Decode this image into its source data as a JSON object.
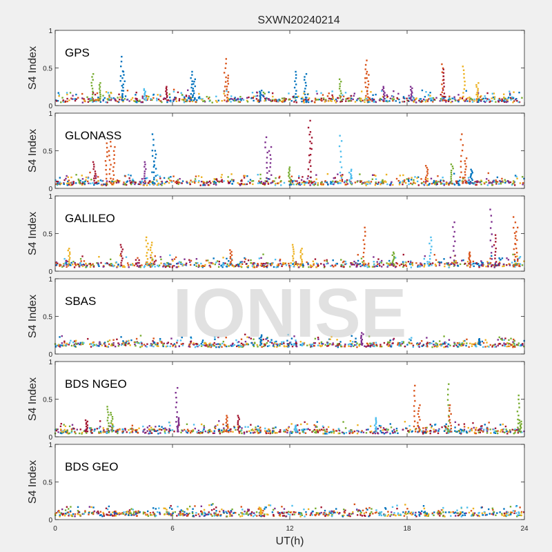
{
  "figure": {
    "title": "SXWN20240214",
    "xlabel": "UT(h)",
    "watermark": "IONISE",
    "background": "#f0f0f0",
    "axes_background": "#ffffff"
  },
  "series_colors": [
    "#0072bd",
    "#d95319",
    "#edb120",
    "#7e2f8e",
    "#77ac30",
    "#4dbeee",
    "#a2142f"
  ],
  "chart_data": [
    {
      "type": "scatter",
      "panel_label": "GPS",
      "ylabel": "S4 Index",
      "xlim": [
        0,
        24
      ],
      "ylim": [
        0,
        1
      ],
      "xticks": [
        0,
        6,
        12,
        18,
        24
      ],
      "yticks": [
        0,
        0.5,
        1
      ],
      "show_xticklabels": false,
      "baseline": 0.07,
      "spikes": [
        {
          "x": 1.9,
          "y": 0.42,
          "series": 4
        },
        {
          "x": 2.3,
          "y": 0.3,
          "series": 4
        },
        {
          "x": 3.4,
          "y": 0.65,
          "series": 0
        },
        {
          "x": 3.5,
          "y": 0.45,
          "series": 0
        },
        {
          "x": 4.6,
          "y": 0.22,
          "series": 5
        },
        {
          "x": 5.7,
          "y": 0.25,
          "series": 6
        },
        {
          "x": 7.0,
          "y": 0.45,
          "series": 0
        },
        {
          "x": 7.1,
          "y": 0.35,
          "series": 0
        },
        {
          "x": 8.7,
          "y": 0.62,
          "series": 1
        },
        {
          "x": 8.8,
          "y": 0.4,
          "series": 1
        },
        {
          "x": 10.5,
          "y": 0.2,
          "series": 0
        },
        {
          "x": 12.3,
          "y": 0.45,
          "series": 0
        },
        {
          "x": 12.8,
          "y": 0.42,
          "series": 0
        },
        {
          "x": 14.6,
          "y": 0.35,
          "series": 4
        },
        {
          "x": 15.9,
          "y": 0.6,
          "series": 1
        },
        {
          "x": 16.0,
          "y": 0.45,
          "series": 1
        },
        {
          "x": 16.8,
          "y": 0.25,
          "series": 3
        },
        {
          "x": 18.2,
          "y": 0.25,
          "series": 3
        },
        {
          "x": 19.8,
          "y": 0.55,
          "series": 1
        },
        {
          "x": 19.9,
          "y": 0.48,
          "series": 6
        },
        {
          "x": 20.9,
          "y": 0.52,
          "series": 2
        },
        {
          "x": 21.6,
          "y": 0.3,
          "series": 2
        }
      ]
    },
    {
      "type": "scatter",
      "panel_label": "GLONASS",
      "ylabel": "S4 Index",
      "xlim": [
        0,
        24
      ],
      "ylim": [
        0,
        1
      ],
      "xticks": [
        0,
        6,
        12,
        18,
        24
      ],
      "yticks": [
        0,
        0.5,
        1
      ],
      "show_xticklabels": false,
      "baseline": 0.07,
      "spikes": [
        {
          "x": 2.0,
          "y": 0.35,
          "series": 6
        },
        {
          "x": 2.6,
          "y": 0.6,
          "series": 1
        },
        {
          "x": 2.8,
          "y": 0.62,
          "series": 1
        },
        {
          "x": 3.0,
          "y": 0.55,
          "series": 1
        },
        {
          "x": 4.6,
          "y": 0.35,
          "series": 3
        },
        {
          "x": 5.0,
          "y": 0.72,
          "series": 0
        },
        {
          "x": 5.1,
          "y": 0.5,
          "series": 0
        },
        {
          "x": 10.8,
          "y": 0.68,
          "series": 3
        },
        {
          "x": 11.0,
          "y": 0.55,
          "series": 3
        },
        {
          "x": 12.0,
          "y": 0.28,
          "series": 4
        },
        {
          "x": 13.0,
          "y": 0.9,
          "series": 6
        },
        {
          "x": 13.1,
          "y": 0.75,
          "series": 6
        },
        {
          "x": 14.6,
          "y": 0.7,
          "series": 5
        },
        {
          "x": 15.1,
          "y": 0.25,
          "series": 5
        },
        {
          "x": 19.0,
          "y": 0.3,
          "series": 1
        },
        {
          "x": 20.3,
          "y": 0.32,
          "series": 4
        },
        {
          "x": 20.8,
          "y": 0.72,
          "series": 1
        },
        {
          "x": 21.0,
          "y": 0.4,
          "series": 1
        },
        {
          "x": 21.3,
          "y": 0.25,
          "series": 0
        }
      ]
    },
    {
      "type": "scatter",
      "panel_label": "GALILEO",
      "ylabel": "S4 Index",
      "xlim": [
        0,
        24
      ],
      "ylim": [
        0,
        1
      ],
      "xticks": [
        0,
        6,
        12,
        18,
        24
      ],
      "yticks": [
        0,
        0.5,
        1
      ],
      "show_xticklabels": false,
      "baseline": 0.08,
      "spikes": [
        {
          "x": 0.7,
          "y": 0.3,
          "series": 2
        },
        {
          "x": 3.4,
          "y": 0.35,
          "series": 6
        },
        {
          "x": 4.7,
          "y": 0.45,
          "series": 2
        },
        {
          "x": 4.9,
          "y": 0.38,
          "series": 2
        },
        {
          "x": 9.0,
          "y": 0.28,
          "series": 1
        },
        {
          "x": 12.2,
          "y": 0.35,
          "series": 2
        },
        {
          "x": 12.6,
          "y": 0.3,
          "series": 2
        },
        {
          "x": 15.8,
          "y": 0.58,
          "series": 1
        },
        {
          "x": 17.3,
          "y": 0.25,
          "series": 4
        },
        {
          "x": 19.2,
          "y": 0.45,
          "series": 5
        },
        {
          "x": 20.4,
          "y": 0.65,
          "series": 3
        },
        {
          "x": 21.2,
          "y": 0.25,
          "series": 1
        },
        {
          "x": 22.3,
          "y": 0.82,
          "series": 3
        },
        {
          "x": 22.5,
          "y": 0.48,
          "series": 6
        },
        {
          "x": 23.5,
          "y": 0.72,
          "series": 1
        },
        {
          "x": 23.6,
          "y": 0.58,
          "series": 1
        }
      ]
    },
    {
      "type": "scatter",
      "panel_label": "SBAS",
      "ylabel": "S4 Index",
      "xlim": [
        0,
        24
      ],
      "ylim": [
        0,
        1
      ],
      "xticks": [
        0,
        6,
        12,
        18,
        24
      ],
      "yticks": [
        0,
        0.5,
        1
      ],
      "show_xticklabels": false,
      "baseline": 0.12,
      "spikes": [
        {
          "x": 10.5,
          "y": 0.25,
          "series": 0
        },
        {
          "x": 15.7,
          "y": 0.28,
          "series": 3
        },
        {
          "x": 21.7,
          "y": 0.2,
          "series": 0
        }
      ]
    },
    {
      "type": "scatter",
      "panel_label": "BDS NGEO",
      "ylabel": "S4 Index",
      "xlim": [
        0,
        24
      ],
      "ylim": [
        0,
        1
      ],
      "xticks": [
        0,
        6,
        12,
        18,
        24
      ],
      "yticks": [
        0,
        0.5,
        1
      ],
      "show_xticklabels": false,
      "baseline": 0.07,
      "spikes": [
        {
          "x": 1.6,
          "y": 0.22,
          "series": 6
        },
        {
          "x": 2.7,
          "y": 0.4,
          "series": 4
        },
        {
          "x": 2.9,
          "y": 0.32,
          "series": 4
        },
        {
          "x": 6.2,
          "y": 0.65,
          "series": 3
        },
        {
          "x": 6.3,
          "y": 0.25,
          "series": 3
        },
        {
          "x": 8.8,
          "y": 0.28,
          "series": 1
        },
        {
          "x": 9.4,
          "y": 0.28,
          "series": 6
        },
        {
          "x": 12.3,
          "y": 0.15,
          "series": 5
        },
        {
          "x": 16.4,
          "y": 0.25,
          "series": 5
        },
        {
          "x": 18.4,
          "y": 0.68,
          "series": 1
        },
        {
          "x": 18.6,
          "y": 0.42,
          "series": 1
        },
        {
          "x": 20.1,
          "y": 0.7,
          "series": 4
        },
        {
          "x": 20.2,
          "y": 0.42,
          "series": 1
        },
        {
          "x": 23.7,
          "y": 0.55,
          "series": 4
        },
        {
          "x": 23.8,
          "y": 0.22,
          "series": 4
        }
      ]
    },
    {
      "type": "scatter",
      "panel_label": "BDS GEO",
      "ylabel": "S4 Index",
      "xlim": [
        0,
        24
      ],
      "ylim": [
        0,
        1
      ],
      "xticks": [
        0,
        6,
        12,
        18,
        24
      ],
      "yticks": [
        0,
        0.5,
        1
      ],
      "show_xticklabels": true,
      "baseline": 0.07,
      "spikes": [
        {
          "x": 10.5,
          "y": 0.16,
          "series": 2
        }
      ]
    }
  ]
}
